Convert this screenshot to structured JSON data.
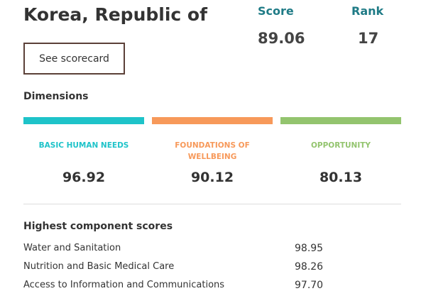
{
  "header": {
    "title": "Korea, Republic of",
    "score_label": "Score",
    "score": "89.06",
    "rank_label": "Rank",
    "rank": "17",
    "button": "See scorecard"
  },
  "dimensions": {
    "title": "Dimensions",
    "items": [
      {
        "name": "BASIC HUMAN NEEDS",
        "value": "96.92",
        "color": "#1ec3c9"
      },
      {
        "name": "FOUNDATIONS OF WELLBEING",
        "value": "90.12",
        "color": "#f7995a"
      },
      {
        "name": "OPPORTUNITY",
        "value": "80.13",
        "color": "#93c46e"
      }
    ]
  },
  "components": {
    "title": "Highest component scores",
    "rows": [
      [
        "Water and Sanitation",
        "98.95"
      ],
      [
        "Nutrition and Basic Medical Care",
        "98.26"
      ],
      [
        "Access to Information and Communications",
        "97.70"
      ]
    ]
  }
}
